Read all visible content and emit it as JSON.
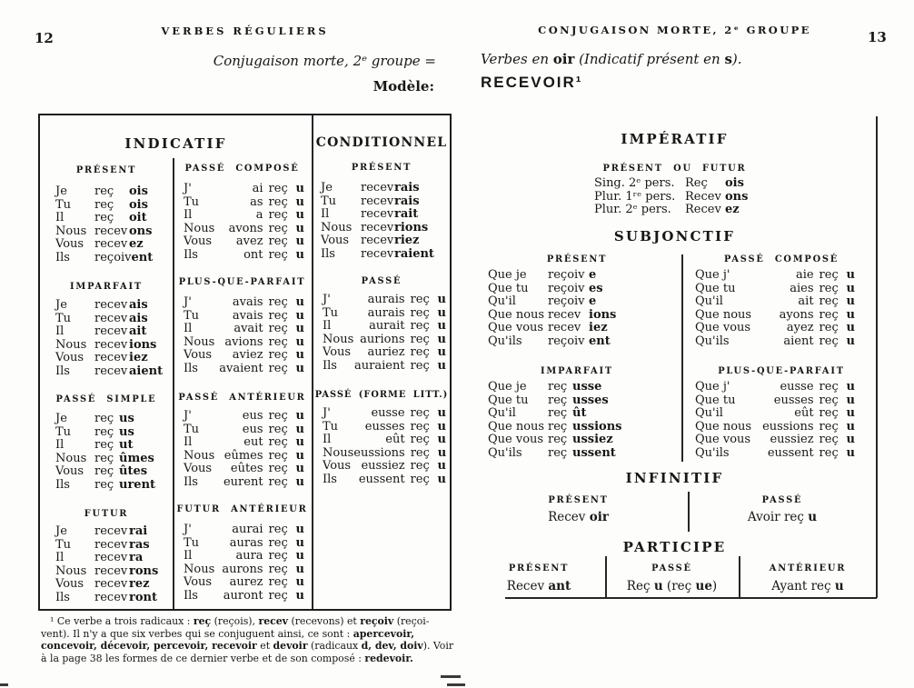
{
  "left_page": {
    "page_number": "12",
    "running_header": "VERBES RÉGULIERS",
    "lead_line": "Conjugaison morte, 2ᵉ groupe =",
    "modele_label": "Modèle:",
    "indicatif_title": "INDICATIF",
    "conditionnel_title": "CONDITIONNEL",
    "col1": {
      "present": {
        "label": "PRÉSENT",
        "rows": [
          [
            "Je",
            "reç",
            "ois"
          ],
          [
            "Tu",
            "reç",
            "ois"
          ],
          [
            "Il",
            "reç",
            "oit"
          ],
          [
            "Nous",
            "recev",
            "ons"
          ],
          [
            "Vous",
            "recev",
            "ez"
          ],
          [
            "Ils",
            "reçoiv",
            "ent"
          ]
        ]
      },
      "imparfait": {
        "label": "IMPARFAIT",
        "rows": [
          [
            "Je",
            "recev",
            "ais"
          ],
          [
            "Tu",
            "recev",
            "ais"
          ],
          [
            "Il",
            "recev",
            "ait"
          ],
          [
            "Nous",
            "recev",
            "ions"
          ],
          [
            "Vous",
            "recev",
            "iez"
          ],
          [
            "Ils",
            "recev",
            "aient"
          ]
        ]
      },
      "passe_simple": {
        "label": "PASSÉ SIMPLE",
        "rows": [
          [
            "Je",
            "reç",
            "us"
          ],
          [
            "Tu",
            "reç",
            "us"
          ],
          [
            "Il",
            "reç",
            "ut"
          ],
          [
            "Nous",
            "reç",
            "ûmes"
          ],
          [
            "Vous",
            "reç",
            "ûtes"
          ],
          [
            "Ils",
            "reç",
            "urent"
          ]
        ]
      },
      "futur": {
        "label": "FUTUR",
        "rows": [
          [
            "Je",
            "recev",
            "rai"
          ],
          [
            "Tu",
            "recev",
            "ras"
          ],
          [
            "Il",
            "recev",
            "ra"
          ],
          [
            "Nous",
            "recev",
            "rons"
          ],
          [
            "Vous",
            "recev",
            "rez"
          ],
          [
            "Ils",
            "recev",
            "ront"
          ]
        ]
      }
    },
    "col2": {
      "passe_compose": {
        "label": "PASSÉ COMPOSÉ",
        "rows": [
          [
            "J'",
            "ai",
            "reç",
            "u"
          ],
          [
            "Tu",
            "as",
            "reç",
            "u"
          ],
          [
            "Il",
            "a",
            "reç",
            "u"
          ],
          [
            "Nous",
            "avons",
            "reç",
            "u"
          ],
          [
            "Vous",
            "avez",
            "reç",
            "u"
          ],
          [
            "Ils",
            "ont",
            "reç",
            "u"
          ]
        ]
      },
      "plus_que_parfait": {
        "label": "PLUS-QUE-PARFAIT",
        "rows": [
          [
            "J'",
            "avais",
            "reç",
            "u"
          ],
          [
            "Tu",
            "avais",
            "reç",
            "u"
          ],
          [
            "Il",
            "avait",
            "reç",
            "u"
          ],
          [
            "Nous",
            "avions",
            "reç",
            "u"
          ],
          [
            "Vous",
            "aviez",
            "reç",
            "u"
          ],
          [
            "Ils",
            "avaient",
            "reç",
            "u"
          ]
        ]
      },
      "passe_anterieur": {
        "label": "PASSÉ ANTÉRIEUR",
        "rows": [
          [
            "J'",
            "eus",
            "reç",
            "u"
          ],
          [
            "Tu",
            "eus",
            "reç",
            "u"
          ],
          [
            "Il",
            "eut",
            "reç",
            "u"
          ],
          [
            "Nous",
            "eûmes",
            "reç",
            "u"
          ],
          [
            "Vous",
            "eûtes",
            "reç",
            "u"
          ],
          [
            "Ils",
            "eurent",
            "reç",
            "u"
          ]
        ]
      },
      "futur_anterieur": {
        "label": "FUTUR ANTÉRIEUR",
        "rows": [
          [
            "J'",
            "aurai",
            "reç",
            "u"
          ],
          [
            "Tu",
            "auras",
            "reç",
            "u"
          ],
          [
            "Il",
            "aura",
            "reç",
            "u"
          ],
          [
            "Nous",
            "aurons",
            "reç",
            "u"
          ],
          [
            "Vous",
            "aurez",
            "reç",
            "u"
          ],
          [
            "Ils",
            "auront",
            "reç",
            "u"
          ]
        ]
      }
    },
    "conditionnel": {
      "present": {
        "label": "PRÉSENT",
        "rows": [
          [
            "Je",
            "recev",
            "rais"
          ],
          [
            "Tu",
            "recev",
            "rais"
          ],
          [
            "Il",
            "recev",
            "rait"
          ],
          [
            "Nous",
            "recev",
            "rions"
          ],
          [
            "Vous",
            "recev",
            "riez"
          ],
          [
            "Ils",
            "recev",
            "raient"
          ]
        ]
      },
      "passe": {
        "label": "PASSÉ",
        "rows": [
          [
            "J'",
            "aurais",
            "reç",
            "u"
          ],
          [
            "Tu",
            "aurais",
            "reç",
            "u"
          ],
          [
            "Il",
            "aurait",
            "reç",
            "u"
          ],
          [
            "Nous",
            "aurions",
            "reç",
            "u"
          ],
          [
            "Vous",
            "auriez",
            "reç",
            "u"
          ],
          [
            "Ils",
            "auraient",
            "reç",
            "u"
          ]
        ]
      },
      "passe_litt": {
        "label": "PASSÉ (FORME LITT.)",
        "rows": [
          [
            "J'",
            "eusse",
            "reç",
            "u"
          ],
          [
            "Tu",
            "eusses",
            "reç",
            "u"
          ],
          [
            "Il",
            "eût",
            "reç",
            "u"
          ],
          [
            "Nous",
            "eussions",
            "reç",
            "u"
          ],
          [
            "Vous",
            "eussiez",
            "reç",
            "u"
          ],
          [
            "Ils",
            "eussent",
            "reç",
            "u"
          ]
        ]
      }
    },
    "footnote_lines": [
      [
        {
          "t": "¹ Ce verbe a trois radicaux : "
        },
        {
          "t": "reç",
          "b": 1
        },
        {
          "t": " (reçois), "
        },
        {
          "t": "recev",
          "b": 1
        },
        {
          "t": " (recevons) et "
        },
        {
          "t": "reçoiv",
          "b": 1
        },
        {
          "t": " (reçoi-"
        }
      ],
      [
        {
          "t": "vent). Il n'y a que six verbes qui se conjuguent ainsi, ce sont : "
        },
        {
          "t": "apercevoir,",
          "b": 1
        }
      ],
      [
        {
          "t": "concevoir, décevoir, percevoir, recevoir",
          "b": 1
        },
        {
          "t": " et "
        },
        {
          "t": "devoir",
          "b": 1
        },
        {
          "t": " (radicaux "
        },
        {
          "t": "d, dev, doiv",
          "b": 1
        },
        {
          "t": "). Voir"
        }
      ],
      [
        {
          "t": "à la page 38 les formes de ce dernier verbe et de son composé : "
        },
        {
          "t": "redevoir.",
          "b": 1
        }
      ]
    ]
  },
  "right_page": {
    "page_number": "13",
    "running_header": "CONJUGAISON MORTE, 2ᵉ GROUPE",
    "lead_segments": [
      {
        "t": "Verbes en ",
        "i": 1
      },
      {
        "t": "oir",
        "b": 1
      },
      {
        "t": " (",
        "i": 1
      },
      {
        "t": "Indicatif présent en ",
        "i": 1
      },
      {
        "t": "s",
        "b": 1
      },
      {
        "t": ").",
        "i": 1
      }
    ],
    "model_verb": "RECEVOIR¹",
    "imperatif": {
      "title": "IMPÉRATIF",
      "subtitle": "PRÉSENT OU FUTUR",
      "rows": [
        [
          "Sing. 2ᵉ pers.",
          "Reç",
          "ois"
        ],
        [
          "Plur. 1ʳᵉ pers.",
          "Recev",
          "ons"
        ],
        [
          "Plur. 2ᵉ pers.",
          "Recev",
          "ez"
        ]
      ]
    },
    "subjonctif": {
      "title": "SUBJONCTIF",
      "present": {
        "label": "PRÉSENT",
        "rows": [
          [
            "Que je",
            "reçoiv",
            "e"
          ],
          [
            "Que tu",
            "reçoiv",
            "es"
          ],
          [
            "Qu'il",
            "reçoiv",
            "e"
          ],
          [
            "Que nous",
            "recev",
            "ions"
          ],
          [
            "Que vous",
            "recev",
            "iez"
          ],
          [
            "Qu'ils",
            "reçoiv",
            "ent"
          ]
        ]
      },
      "passe_compose": {
        "label": "PASSÉ COMPOSÉ",
        "rows": [
          [
            "Que j'",
            "aie",
            "reç",
            "u"
          ],
          [
            "Que tu",
            "aies",
            "reç",
            "u"
          ],
          [
            "Qu'il",
            "ait",
            "reç",
            "u"
          ],
          [
            "Que nous",
            "ayons",
            "reç",
            "u"
          ],
          [
            "Que vous",
            "ayez",
            "reç",
            "u"
          ],
          [
            "Qu'ils",
            "aient",
            "reç",
            "u"
          ]
        ]
      },
      "imparfait": {
        "label": "IMPARFAIT",
        "rows": [
          [
            "Que je",
            "reç",
            "usse"
          ],
          [
            "Que tu",
            "reç",
            "usses"
          ],
          [
            "Qu'il",
            "reç",
            "ût"
          ],
          [
            "Que nous",
            "reç",
            "ussions"
          ],
          [
            "Que vous",
            "reç",
            "ussiez"
          ],
          [
            "Qu'ils",
            "reç",
            "ussent"
          ]
        ]
      },
      "plus_que_parfait": {
        "label": "PLUS-QUE-PARFAIT",
        "rows": [
          [
            "Que j'",
            "eusse",
            "reç",
            "u"
          ],
          [
            "Que tu",
            "eusses",
            "reç",
            "u"
          ],
          [
            "Qu'il",
            "eût",
            "reç",
            "u"
          ],
          [
            "Que nous",
            "eussions",
            "reç",
            "u"
          ],
          [
            "Que vous",
            "eussiez",
            "reç",
            "u"
          ],
          [
            "Qu'ils",
            "eussent",
            "reç",
            "u"
          ]
        ]
      }
    },
    "infinitif": {
      "title": "INFINITIF",
      "present_label": "PRÉSENT",
      "present": [
        {
          "t": "Recev "
        },
        {
          "t": "oir",
          "b": 1
        }
      ],
      "passe_label": "PASSÉ",
      "passe": [
        {
          "t": "Avoir reç "
        },
        {
          "t": "u",
          "b": 1
        }
      ]
    },
    "participe": {
      "title": "PARTICIPE",
      "present_label": "PRÉSENT",
      "present": [
        {
          "t": "Recev "
        },
        {
          "t": "ant",
          "b": 1
        }
      ],
      "passe_label": "PASSÉ",
      "passe": [
        {
          "t": "Reç "
        },
        {
          "t": "u",
          "b": 1
        },
        {
          "t": "  (reç "
        },
        {
          "t": "ue",
          "b": 1
        },
        {
          "t": ")"
        }
      ],
      "anterieur_label": "ANTÉRIEUR",
      "anterieur": [
        {
          "t": "Ayant reç "
        },
        {
          "t": "u",
          "b": 1
        }
      ]
    }
  }
}
